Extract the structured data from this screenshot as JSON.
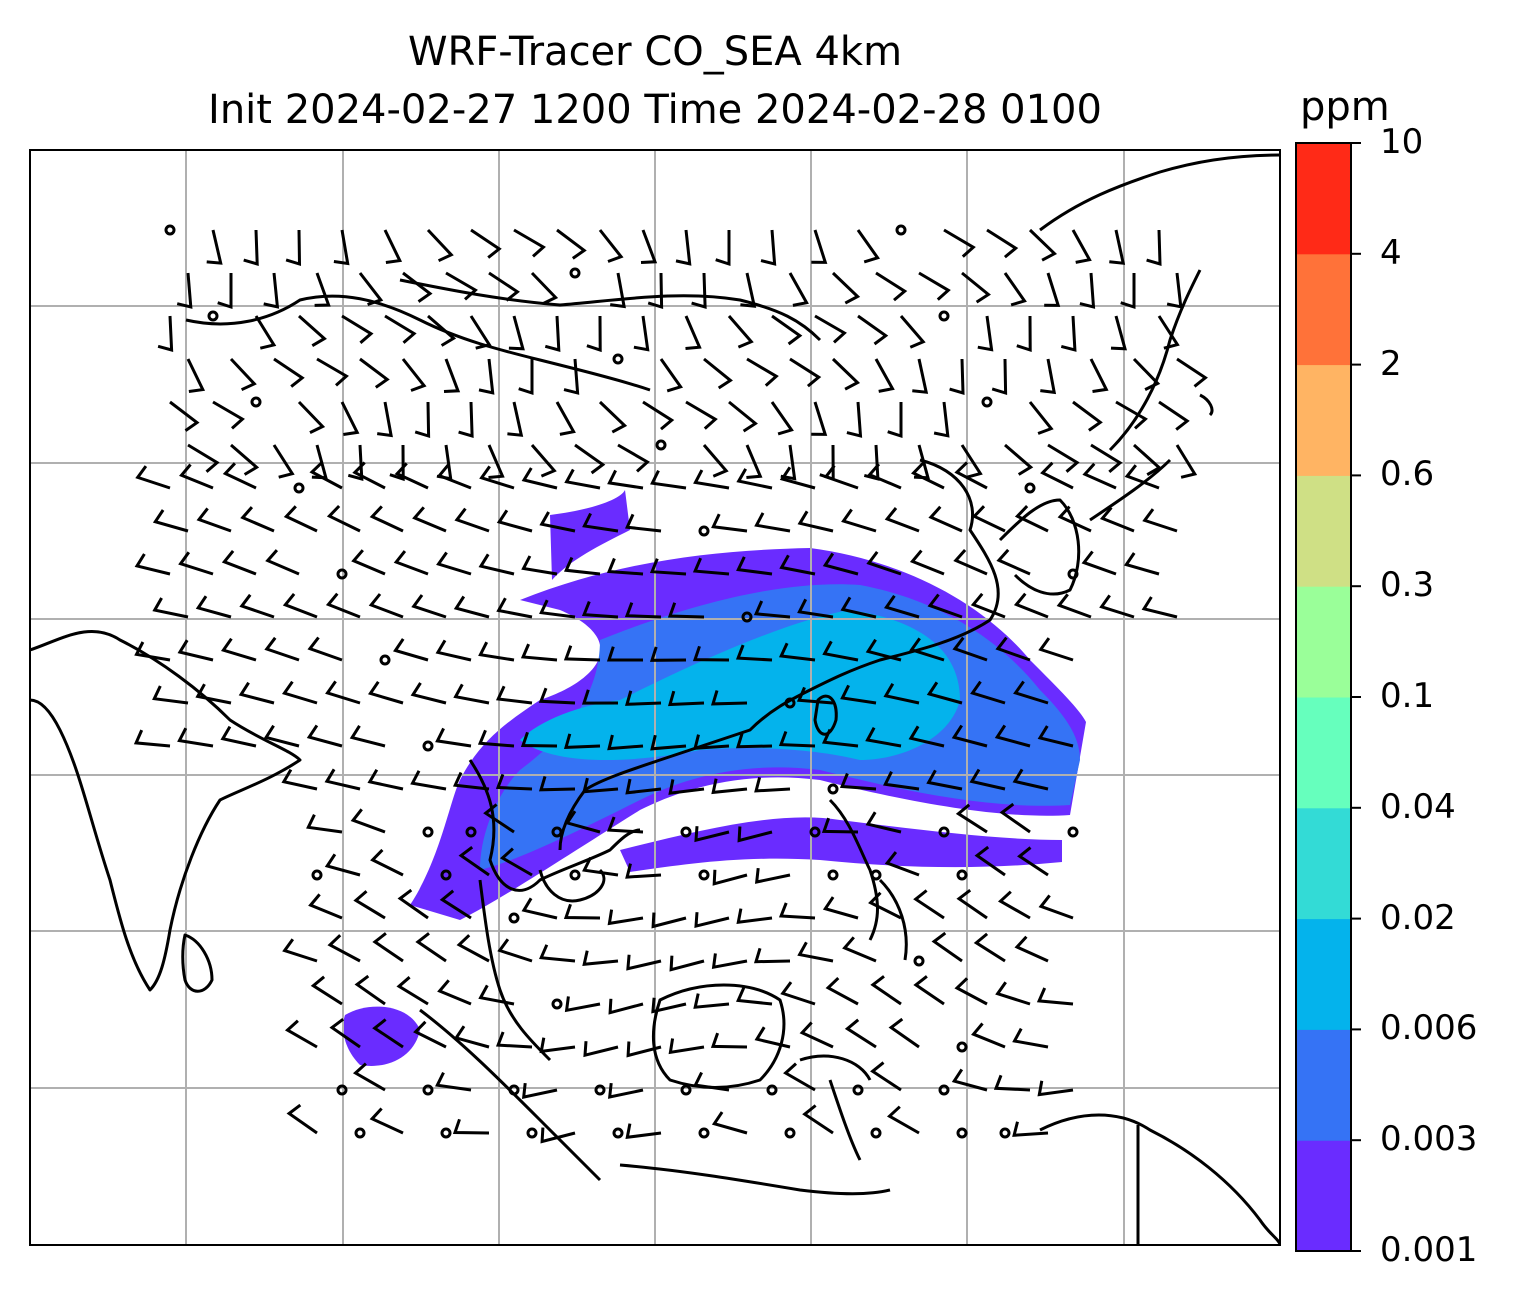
{
  "title": {
    "line1": "WRF-Tracer CO_SEA 4km",
    "line2": "Init 2024-02-27 1200 Time 2024-02-28 0100"
  },
  "colorbar": {
    "unit": "ppm",
    "levels": [
      "0.001",
      "0.003",
      "0.006",
      "0.02",
      "0.04",
      "0.1",
      "0.3",
      "0.6",
      "2",
      "4",
      "10"
    ],
    "colors": [
      "#6a2cff",
      "#3573f5",
      "#04b3ec",
      "#33dbd6",
      "#66ffbd",
      "#9aff99",
      "#cfe085",
      "#ffb463",
      "#ff7239",
      "#ff2a17"
    ]
  },
  "map": {
    "gridlines": true,
    "field": "CO_SEA tracer",
    "wind_barbs": true
  }
}
